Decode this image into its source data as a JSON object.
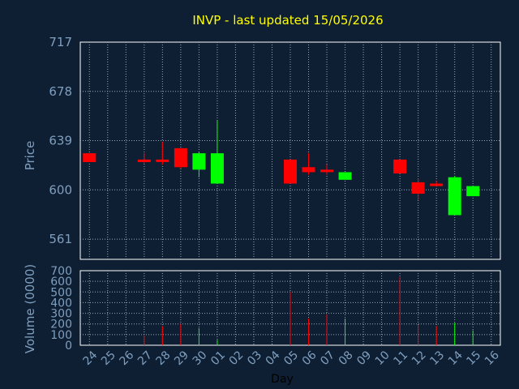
{
  "chart_data": {
    "type": "candlestick",
    "title": "INVP - last updated 15/05/2026",
    "price_axis": {
      "label": "Price",
      "ylim": [
        545,
        717
      ],
      "ticks": [
        561,
        600,
        639,
        678,
        717
      ]
    },
    "volume_axis": {
      "label": "Volume (0000)",
      "ylim": [
        0,
        700
      ],
      "ticks": [
        0,
        100,
        200,
        300,
        400,
        500,
        600,
        700
      ]
    },
    "xlabel": "Day",
    "days": [
      "24",
      "25",
      "26",
      "27",
      "28",
      "29",
      "30",
      "01",
      "02",
      "03",
      "04",
      "05",
      "06",
      "07",
      "08",
      "09",
      "10",
      "11",
      "12",
      "13",
      "14",
      "15",
      "16"
    ],
    "grid": true,
    "colors": {
      "up": "#00ff00",
      "down": "#ff0000"
    },
    "candles": [
      {
        "day": "24",
        "open": 629,
        "high": 629,
        "low": 622,
        "close": 622,
        "volume": 0
      },
      {
        "day": "27",
        "open": 624,
        "high": 629,
        "low": 621,
        "close": 622,
        "volume": 90
      },
      {
        "day": "28",
        "open": 624,
        "high": 638,
        "low": 620,
        "close": 623,
        "volume": 180
      },
      {
        "day": "29",
        "open": 633,
        "high": 633,
        "low": 617,
        "close": 618,
        "volume": 200
      },
      {
        "day": "30",
        "open": 616,
        "high": 630,
        "low": 610,
        "close": 629,
        "volume": 160
      },
      {
        "day": "01",
        "open": 605,
        "high": 655,
        "low": 605,
        "close": 629,
        "volume": 50
      },
      {
        "day": "05",
        "open": 624,
        "high": 624,
        "low": 605,
        "close": 605,
        "volume": 500
      },
      {
        "day": "06",
        "open": 618,
        "high": 629,
        "low": 612,
        "close": 614,
        "volume": 250
      },
      {
        "day": "07",
        "open": 616,
        "high": 620,
        "low": 612,
        "close": 615,
        "volume": 290
      },
      {
        "day": "08",
        "open": 608,
        "high": 614,
        "low": 608,
        "close": 614,
        "volume": 250
      },
      {
        "day": "11",
        "open": 624,
        "high": 624,
        "low": 613,
        "close": 613,
        "volume": 640
      },
      {
        "day": "12",
        "open": 606,
        "high": 609,
        "low": 592,
        "close": 597,
        "volume": 190
      },
      {
        "day": "13",
        "open": 605,
        "high": 607,
        "low": 603,
        "close": 603,
        "volume": 180
      },
      {
        "day": "14",
        "open": 580,
        "high": 611,
        "low": 580,
        "close": 610,
        "volume": 210
      },
      {
        "day": "15",
        "open": 595,
        "high": 603,
        "low": 595,
        "close": 603,
        "volume": 140
      }
    ]
  }
}
